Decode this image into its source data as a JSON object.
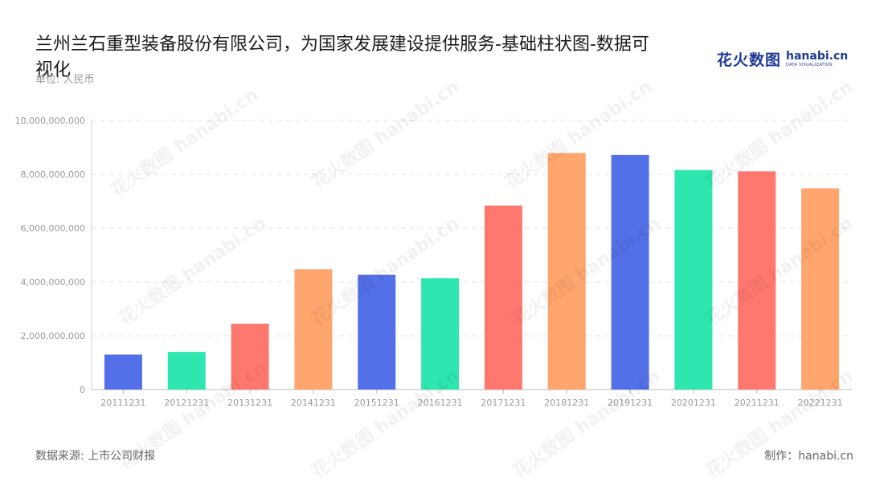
{
  "header": {
    "title": "兰州兰石重型装备股份有限公司，为国家发展建设提供服务-基础柱状图-数据可视化",
    "unit": "单位: 人民币"
  },
  "logo": {
    "cn": "花火数图",
    "en": "hanabi.cn",
    "en_sub": "DATA VISUALIZATION"
  },
  "footer": {
    "source": "数据来源: 上市公司财报",
    "credit": "制作：hanabi.cn"
  },
  "watermark_text": "花火数图 hanabi.cn",
  "chart_data": {
    "type": "bar",
    "title": "",
    "xlabel": "",
    "ylabel": "",
    "categories": [
      "20111231",
      "20121231",
      "20131231",
      "20141231",
      "20151231",
      "20161231",
      "20171231",
      "20181231",
      "20191231",
      "20201231",
      "20211231",
      "20221231"
    ],
    "values": [
      1300000000,
      1400000000,
      2450000000,
      4470000000,
      4270000000,
      4140000000,
      6840000000,
      8790000000,
      8720000000,
      8160000000,
      8110000000,
      7480000000
    ],
    "bar_colors": [
      "#5470e8",
      "#2ee6b0",
      "#ff7870",
      "#ffa56e",
      "#5470e8",
      "#2ee6b0",
      "#ff7870",
      "#ffa56e",
      "#5470e8",
      "#2ee6b0",
      "#ff7870",
      "#ffa56e"
    ],
    "yticks": [
      "0",
      "2,000,000,000",
      "4,000,000,000",
      "6,000,000,000",
      "8,000,000,000",
      "10,000,000,000"
    ],
    "ylim": [
      0,
      10000000000
    ],
    "grid": true,
    "legend": false
  }
}
